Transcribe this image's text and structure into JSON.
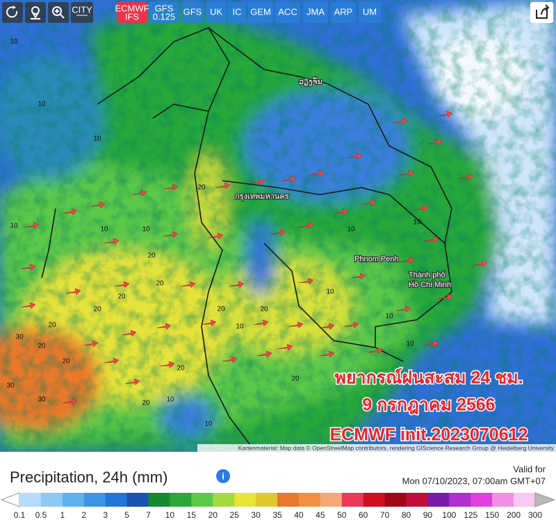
{
  "toolbar": {
    "city": "CITY",
    "models": [
      [
        "ECMWF",
        "IFS"
      ],
      [
        "GFS",
        "0.125"
      ],
      [
        "GFS"
      ],
      [
        "UK"
      ],
      [
        "IC"
      ],
      [
        "GEM"
      ],
      [
        "ACC"
      ],
      [
        "JMA"
      ],
      [
        "ARP"
      ],
      [
        "UM"
      ]
    ]
  },
  "map": {
    "places": [
      "ວຽງຈັນ",
      "กรุงเทพมหานคร",
      "Phnom Penh",
      "Thành phố",
      "Hồ Chí Minh"
    ],
    "contour_labels": [
      "10",
      "10",
      "10",
      "10",
      "20",
      "10",
      "10",
      "20",
      "20",
      "20",
      "20",
      "20",
      "20",
      "20",
      "30",
      "30",
      "20",
      "20",
      "10",
      "10",
      "20",
      "10",
      "10",
      "10",
      "10",
      "20",
      "10",
      "10",
      "30",
      "20"
    ],
    "overlay": [
      "พยากรณ์ฝนสะสม 24 ชม.",
      "9 กรกฎาคม 2566",
      "ECMWF init.2023070612"
    ],
    "attribution": "Kartenmaterial: Map data © OpenStreetMap contributors, rendering GIScience Research Group @ Heidelberg University"
  },
  "panel": {
    "title": "Precipitation, 24h (mm)",
    "valid_label": "Valid for",
    "valid_time": "Mon 07/10/2023, 07:00am GMT+07"
  },
  "legend": {
    "labels": [
      "0.1",
      "0.5",
      "1",
      "2",
      "3",
      "5",
      "7",
      "10",
      "15",
      "20",
      "25",
      "30",
      "35",
      "40",
      "45",
      "50",
      "60",
      "70",
      "80",
      "90",
      "100",
      "125",
      "150",
      "200",
      "300"
    ],
    "colors": [
      "#b3dcf7",
      "#8ec9f3",
      "#5fb0ee",
      "#3d95e3",
      "#2277d6",
      "#1a52b0",
      "#158a30",
      "#2aa83a",
      "#5cc84a",
      "#a5d940",
      "#e8e43a",
      "#e0c830",
      "#e8782a",
      "#f09040",
      "#f4a878",
      "#e83a5a",
      "#d0101e",
      "#a00818",
      "#c0103a",
      "#7a1aa8",
      "#b030d0",
      "#e040e0",
      "#f090e0",
      "#f8c8f0"
    ],
    "under_color": "#ffffff",
    "over_color": "#b8b8b8"
  }
}
